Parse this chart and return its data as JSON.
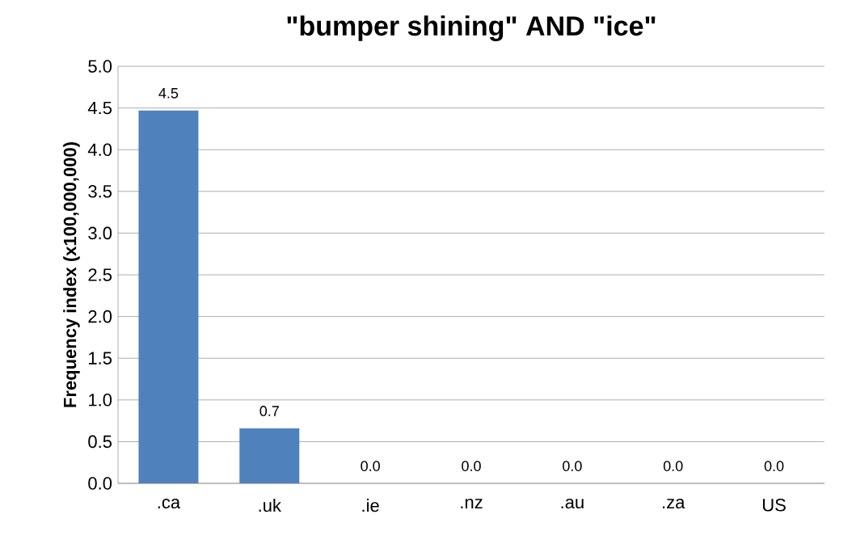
{
  "chart_data": {
    "type": "bar",
    "title": "\"bumper shining\" AND \"ice\"",
    "ylabel": "Frequency index (x100,000,000)",
    "categories": [
      ".ca",
      ".uk",
      ".ie",
      ".nz",
      ".au",
      ".za",
      "US"
    ],
    "values": [
      4.47,
      0.66,
      0,
      0,
      0,
      0,
      0
    ],
    "value_labels": [
      "4.5",
      "0.7",
      "0.0",
      "0.0",
      "0.0",
      "0.0",
      "0.0"
    ],
    "color": "#4f81bd",
    "ylim": [
      0,
      5
    ],
    "yticks": [
      {
        "value": 0,
        "label": "0.0"
      },
      {
        "value": 0.5,
        "label": "0.5"
      },
      {
        "value": 1,
        "label": "1.0"
      },
      {
        "value": 1.5,
        "label": "1.5"
      },
      {
        "value": 2,
        "label": "2.0"
      },
      {
        "value": 2.5,
        "label": "2.5"
      },
      {
        "value": 3,
        "label": "3.0"
      },
      {
        "value": 3.5,
        "label": "3.5"
      },
      {
        "value": 4,
        "label": "4.0"
      },
      {
        "value": 4.5,
        "label": "4.5"
      },
      {
        "value": 5,
        "label": "5.0"
      }
    ],
    "grid": "y"
  }
}
